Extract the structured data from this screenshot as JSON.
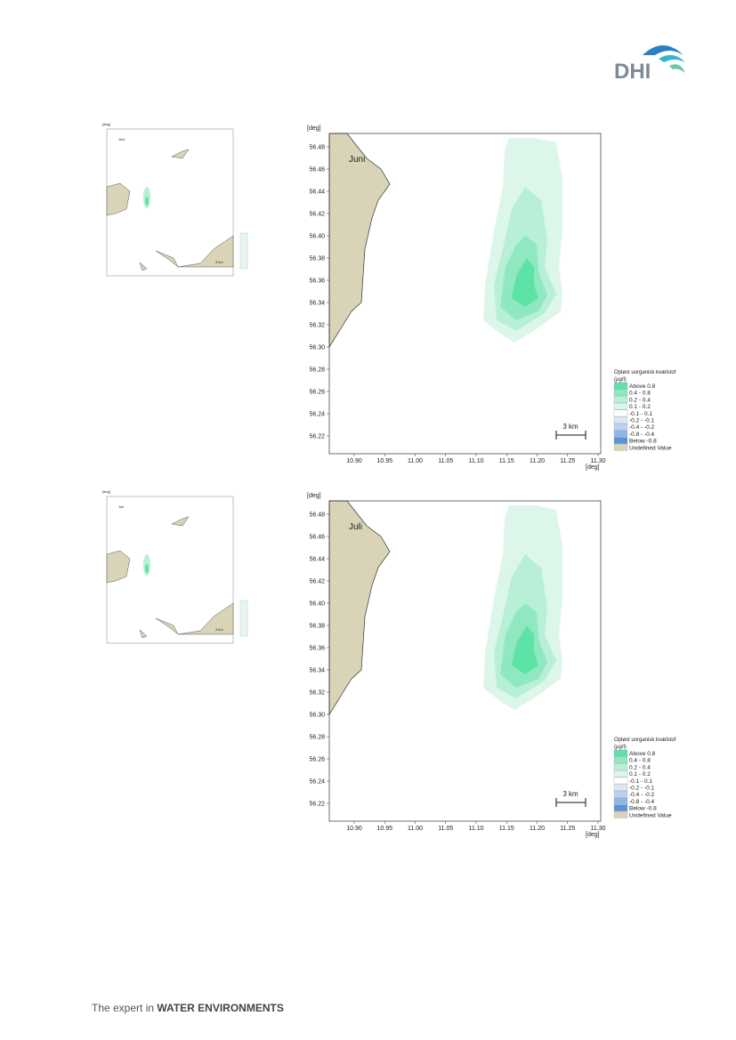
{
  "header": {
    "logo": "DHI"
  },
  "figures": [
    {
      "month": "Juni",
      "y_unit": "[deg]",
      "x_unit": "[deg]",
      "scale": "3 km",
      "yticks": [
        "56.48",
        "56.46",
        "56.44",
        "56.42",
        "56.40",
        "56.38",
        "56.36",
        "56.34",
        "56.32",
        "56.30",
        "56.28",
        "56.26",
        "56.24",
        "56.22"
      ],
      "xticks": [
        "10.90",
        "10.95",
        "11.00",
        "11.05",
        "11.10",
        "11.15",
        "11.20",
        "11.25",
        "11.30"
      ],
      "legend": {
        "title": "Opløst uorganisk kvælstof",
        "unit": "(µg/l)",
        "items": [
          "Above  0.8",
          "0.4 -  0.8",
          "0.2 -  0.4",
          "0.1 -  0.2",
          "-0.1 -  0.1",
          "-0.2 - -0.1",
          "-0.4 - -0.2",
          "-0.8 - -0.4",
          "Below -0.8",
          "Undefined Value"
        ]
      }
    },
    {
      "month": "Juli",
      "y_unit": "[deg]",
      "x_unit": "[deg]",
      "scale": "3 km",
      "yticks": [
        "56.48",
        "56.46",
        "56.44",
        "56.42",
        "56.40",
        "56.38",
        "56.36",
        "56.34",
        "56.32",
        "56.30",
        "56.28",
        "56.26",
        "56.24",
        "56.22"
      ],
      "xticks": [
        "10.90",
        "10.95",
        "11.00",
        "11.05",
        "11.10",
        "11.15",
        "11.20",
        "11.25",
        "11.30"
      ],
      "legend": {
        "title": "Opløst uorganisk kvælstof",
        "unit": "(µg/l)",
        "items": [
          "Above  0.8",
          "0.4 -  0.8",
          "0.2 -  0.4",
          "0.1 -  0.2",
          "-0.1 -  0.1",
          "-0.2 - -0.1",
          "-0.4 - -0.2",
          "-0.8 - -0.4",
          "Below -0.8",
          "Undefined Value"
        ]
      }
    }
  ],
  "footer": {
    "lead": "The expert in ",
    "emphasis": "WATER ENVIRONMENTS"
  }
}
